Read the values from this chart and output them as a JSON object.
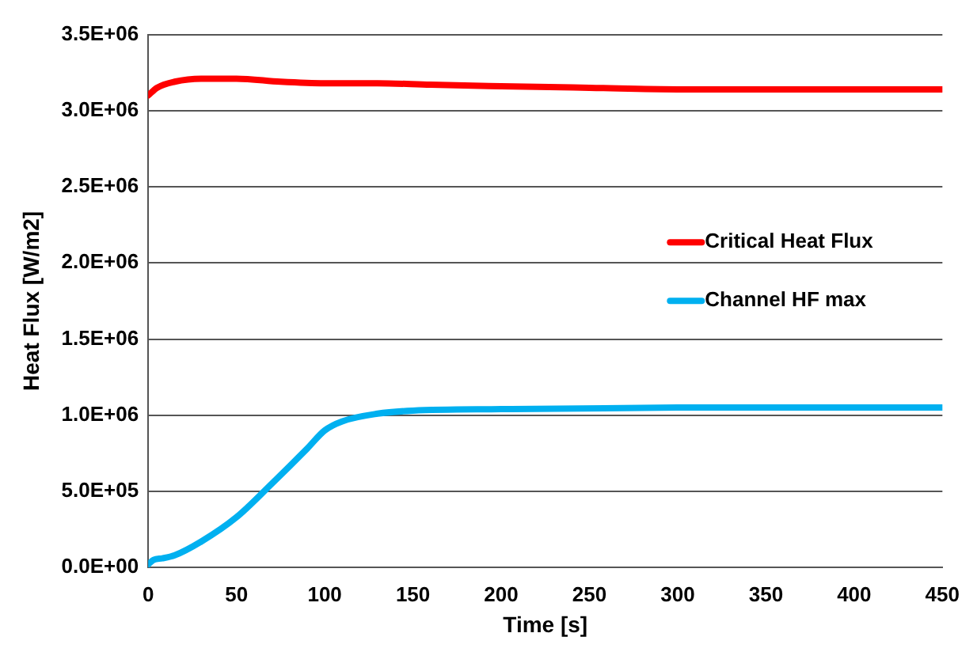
{
  "chart_data": {
    "type": "line",
    "xlabel": "Time [s]",
    "ylabel": "Heat Flux [W/m2]",
    "xlim": [
      0,
      450
    ],
    "xticks": [
      0,
      50,
      100,
      150,
      200,
      250,
      300,
      350,
      400,
      450
    ],
    "ylim": [
      0,
      3500000
    ],
    "yticks": [
      {
        "value": 0,
        "label": "0.0E+00"
      },
      {
        "value": 500000,
        "label": "5.0E+05"
      },
      {
        "value": 1000000,
        "label": "1.0E+06"
      },
      {
        "value": 1500000,
        "label": "1.5E+06"
      },
      {
        "value": 2000000,
        "label": "2.0E+06"
      },
      {
        "value": 2500000,
        "label": "2.5E+06"
      },
      {
        "value": 3000000,
        "label": "3.0E+06"
      },
      {
        "value": 3500000,
        "label": "3.5E+06"
      }
    ],
    "grid": "y",
    "legend": "right",
    "marker": "none",
    "line_style": "solid",
    "series": [
      {
        "name": "Critical Heat Flux",
        "color": "#ff0000",
        "x": [
          0,
          5,
          15,
          30,
          50,
          75,
          100,
          130,
          160,
          200,
          250,
          300,
          350,
          400,
          450
        ],
        "values": [
          3100000,
          3150000,
          3190000,
          3210000,
          3210000,
          3190000,
          3180000,
          3180000,
          3170000,
          3160000,
          3150000,
          3140000,
          3140000,
          3140000,
          3140000
        ]
      },
      {
        "name": "Channel HF max",
        "color": "#00b0f0",
        "x": [
          0,
          3,
          8,
          15,
          30,
          50,
          70,
          90,
          100,
          110,
          130,
          150,
          200,
          300,
          450
        ],
        "values": [
          20000,
          50000,
          60000,
          80000,
          170000,
          330000,
          550000,
          780000,
          900000,
          960000,
          1010000,
          1030000,
          1040000,
          1050000,
          1050000
        ]
      }
    ]
  }
}
